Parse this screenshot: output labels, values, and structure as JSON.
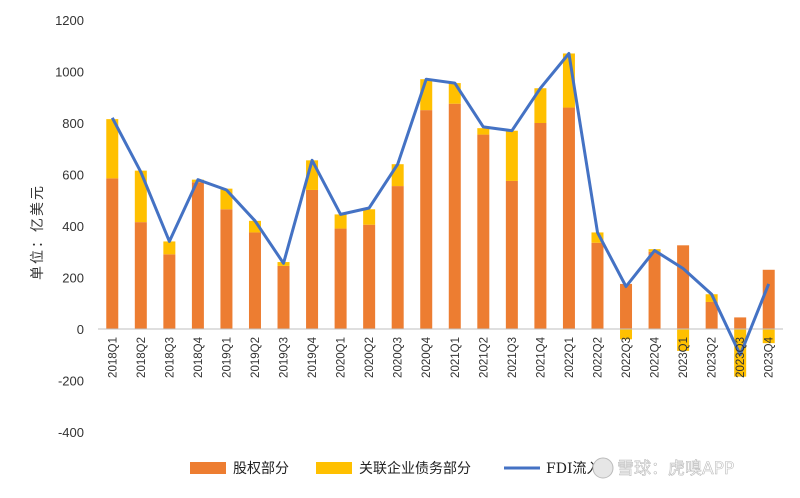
{
  "chart_data": {
    "type": "bar",
    "ylabel": "单位：亿美元",
    "ylim": [
      -400,
      1200
    ],
    "yticks": [
      1200,
      1000,
      800,
      600,
      400,
      200,
      0,
      -200,
      -400
    ],
    "grid": false,
    "legend_position": "bottom",
    "categories": [
      "2018Q1",
      "2018Q2",
      "2018Q3",
      "2018Q4",
      "2019Q1",
      "2019Q2",
      "2019Q3",
      "2019Q4",
      "2020Q1",
      "2020Q2",
      "2020Q3",
      "2020Q4",
      "2021Q1",
      "2021Q2",
      "2021Q3",
      "2021Q4",
      "2022Q1",
      "2022Q2",
      "2022Q3",
      "2022Q4",
      "2023Q1",
      "2023Q2",
      "2023Q3",
      "2023Q4"
    ],
    "series": [
      {
        "name": "股权部分",
        "type": "bar",
        "color": "#ED7D31",
        "values": [
          585,
          415,
          290,
          570,
          465,
          375,
          245,
          540,
          390,
          405,
          555,
          850,
          875,
          755,
          575,
          800,
          860,
          335,
          175,
          300,
          325,
          105,
          45,
          230
        ]
      },
      {
        "name": "关联企业债务部分",
        "type": "bar",
        "color": "#FFC000",
        "values": [
          230,
          200,
          50,
          10,
          80,
          45,
          15,
          115,
          55,
          60,
          85,
          120,
          80,
          25,
          195,
          135,
          210,
          40,
          -40,
          10,
          -85,
          30,
          -185,
          -55
        ]
      },
      {
        "name": "FDI流入",
        "type": "line",
        "color": "#4472C4",
        "values": [
          820,
          610,
          340,
          580,
          540,
          420,
          255,
          655,
          445,
          470,
          640,
          970,
          955,
          785,
          770,
          935,
          1070,
          375,
          165,
          305,
          235,
          135,
          -100,
          175
        ]
      }
    ]
  },
  "watermark": "雪球：虎嗅APP"
}
